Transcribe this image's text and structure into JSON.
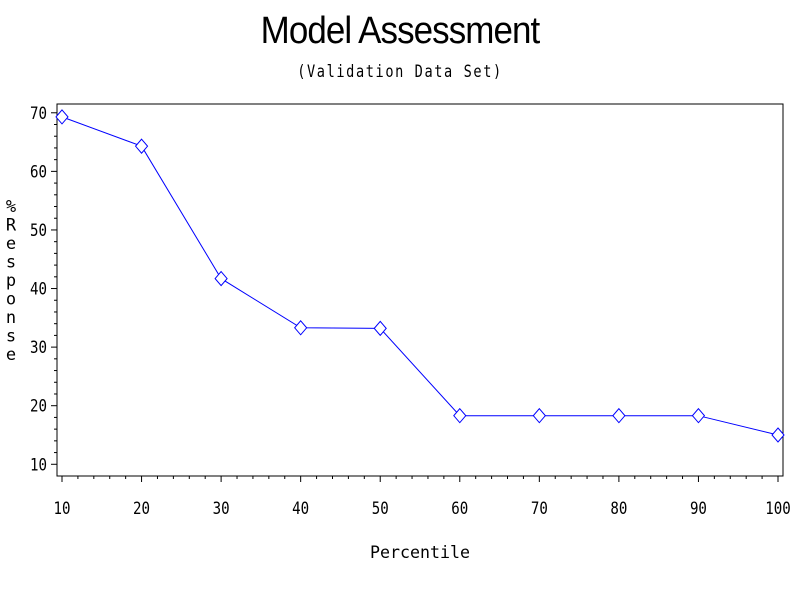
{
  "chart_data": {
    "type": "line",
    "title": "Model Assessment",
    "subtitle": "(Validation Data Set)",
    "xlabel": "Percentile",
    "ylabel": "%Response",
    "x": [
      10,
      20,
      30,
      40,
      50,
      60,
      70,
      80,
      90,
      100
    ],
    "y": [
      69.3,
      64.3,
      41.7,
      33.3,
      33.2,
      18.3,
      18.3,
      18.3,
      18.3,
      15.0
    ],
    "xticks": [
      "10",
      "20",
      "30",
      "40",
      "50",
      "60",
      "70",
      "80",
      "90",
      "100"
    ],
    "yticks": [
      "10",
      "20",
      "30",
      "40",
      "50",
      "60",
      "70"
    ],
    "xlim": [
      10,
      100
    ],
    "ylim": [
      8,
      71.5
    ],
    "marker": "diamond",
    "grid": false,
    "colors": {
      "series": "#0000ff",
      "axis": "#000000"
    }
  }
}
